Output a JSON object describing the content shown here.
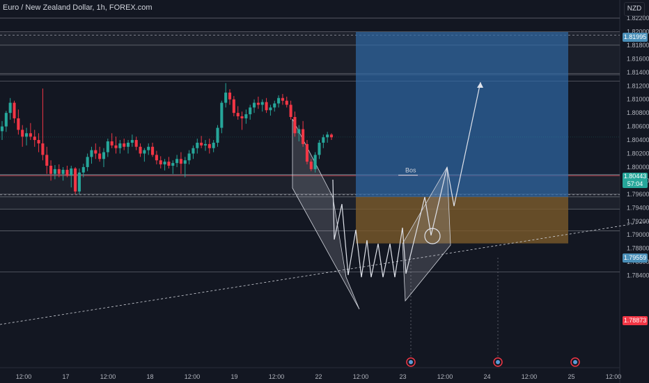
{
  "header": {
    "title": "Euro / New Zealand Dollar, 1h, FOREX.com",
    "currency": "NZD"
  },
  "colors": {
    "background": "#131722",
    "candle_up": "#26a69a",
    "candle_down": "#f23645",
    "target_zone": "#2f6aa6",
    "stop_zone": "#7a5a2a",
    "grid_text": "#b2b5be"
  },
  "chart_data": {
    "type": "candlestick",
    "symbol": "EURNZD",
    "timeframe": "1h",
    "y_axis": {
      "ticks": [
        "1.82200",
        "1.82000",
        "1.81800",
        "1.81600",
        "1.81400",
        "1.81200",
        "1.81000",
        "1.80800",
        "1.80600",
        "1.80400",
        "1.80200",
        "1.80000",
        "1.79800",
        "1.79600",
        "1.79400",
        "1.79200",
        "1.79000",
        "1.78800",
        "1.78600",
        "1.78400"
      ],
      "range": [
        1.7838,
        1.823
      ]
    },
    "x_axis": {
      "ticks": [
        "12:00",
        "17",
        "12:00",
        "18",
        "12:00",
        "19",
        "12:00",
        "22",
        "12:00",
        "23",
        "12:00",
        "24",
        "12:00",
        "25",
        "12:00"
      ]
    },
    "price_labels": {
      "target": "1.81995",
      "last": "1.80443",
      "countdown": "57:04",
      "entry": "1.79559",
      "stop": "1.78873"
    },
    "horizontal_levels": [
      1.822,
      1.82,
      1.818,
      1.8138,
      1.8136,
      1.8127,
      1.7989,
      1.7988,
      1.796,
      1.7956,
      1.7938,
      1.7906,
      1.7845
    ],
    "annotation": "Bos",
    "candles": [
      {
        "o": 1.8053,
        "h": 1.8068,
        "l": 1.804,
        "c": 1.806
      },
      {
        "o": 1.806,
        "h": 1.8083,
        "l": 1.8052,
        "c": 1.808
      },
      {
        "o": 1.808,
        "h": 1.8102,
        "l": 1.807,
        "c": 1.8095
      },
      {
        "o": 1.8095,
        "h": 1.8098,
        "l": 1.8065,
        "c": 1.8072
      },
      {
        "o": 1.8072,
        "h": 1.8085,
        "l": 1.8048,
        "c": 1.8055
      },
      {
        "o": 1.8055,
        "h": 1.8062,
        "l": 1.803,
        "c": 1.8045
      },
      {
        "o": 1.8045,
        "h": 1.8058,
        "l": 1.8032,
        "c": 1.805
      },
      {
        "o": 1.805,
        "h": 1.8065,
        "l": 1.804,
        "c": 1.8045
      },
      {
        "o": 1.8045,
        "h": 1.8055,
        "l": 1.803,
        "c": 1.804
      },
      {
        "o": 1.804,
        "h": 1.805,
        "l": 1.8022,
        "c": 1.8035
      },
      {
        "o": 1.8035,
        "h": 1.8116,
        "l": 1.801,
        "c": 1.8018
      },
      {
        "o": 1.8018,
        "h": 1.803,
        "l": 1.799,
        "c": 1.8002
      },
      {
        "o": 1.8002,
        "h": 1.801,
        "l": 1.798,
        "c": 1.799
      },
      {
        "o": 1.799,
        "h": 1.8003,
        "l": 1.7982,
        "c": 1.7997
      },
      {
        "o": 1.7997,
        "h": 1.8004,
        "l": 1.7985,
        "c": 1.799
      },
      {
        "o": 1.799,
        "h": 1.8,
        "l": 1.798,
        "c": 1.7996
      },
      {
        "o": 1.7996,
        "h": 1.8002,
        "l": 1.7985,
        "c": 1.7988
      },
      {
        "o": 1.7988,
        "h": 1.8002,
        "l": 1.797,
        "c": 1.7998
      },
      {
        "o": 1.7998,
        "h": 1.8,
        "l": 1.796,
        "c": 1.7964
      },
      {
        "o": 1.7964,
        "h": 1.7998,
        "l": 1.796,
        "c": 1.7992
      },
      {
        "o": 1.7992,
        "h": 1.8005,
        "l": 1.7985,
        "c": 1.8
      },
      {
        "o": 1.8,
        "h": 1.802,
        "l": 1.7994,
        "c": 1.8015
      },
      {
        "o": 1.8015,
        "h": 1.803,
        "l": 1.8005,
        "c": 1.8025
      },
      {
        "o": 1.8025,
        "h": 1.8035,
        "l": 1.8012,
        "c": 1.802
      },
      {
        "o": 1.802,
        "h": 1.803,
        "l": 1.8008,
        "c": 1.8012
      },
      {
        "o": 1.8012,
        "h": 1.8028,
        "l": 1.8,
        "c": 1.8022
      },
      {
        "o": 1.8022,
        "h": 1.8042,
        "l": 1.8015,
        "c": 1.8038
      },
      {
        "o": 1.8038,
        "h": 1.805,
        "l": 1.8028,
        "c": 1.8032
      },
      {
        "o": 1.8032,
        "h": 1.8045,
        "l": 1.802,
        "c": 1.8028
      },
      {
        "o": 1.8028,
        "h": 1.804,
        "l": 1.802,
        "c": 1.8035
      },
      {
        "o": 1.8035,
        "h": 1.8042,
        "l": 1.8025,
        "c": 1.803
      },
      {
        "o": 1.803,
        "h": 1.804,
        "l": 1.802,
        "c": 1.8036
      },
      {
        "o": 1.8036,
        "h": 1.8048,
        "l": 1.803,
        "c": 1.804
      },
      {
        "o": 1.804,
        "h": 1.8045,
        "l": 1.8025,
        "c": 1.803
      },
      {
        "o": 1.803,
        "h": 1.8035,
        "l": 1.8015,
        "c": 1.802
      },
      {
        "o": 1.802,
        "h": 1.8028,
        "l": 1.8008,
        "c": 1.8025
      },
      {
        "o": 1.8025,
        "h": 1.8035,
        "l": 1.8018,
        "c": 1.803
      },
      {
        "o": 1.803,
        "h": 1.8036,
        "l": 1.8015,
        "c": 1.8018
      },
      {
        "o": 1.8018,
        "h": 1.8024,
        "l": 1.8004,
        "c": 1.801
      },
      {
        "o": 1.801,
        "h": 1.8016,
        "l": 1.7998,
        "c": 1.8004
      },
      {
        "o": 1.8004,
        "h": 1.8012,
        "l": 1.7995,
        "c": 1.8008
      },
      {
        "o": 1.8008,
        "h": 1.8015,
        "l": 1.7998,
        "c": 1.8002
      },
      {
        "o": 1.8002,
        "h": 1.801,
        "l": 1.799,
        "c": 1.8006
      },
      {
        "o": 1.8006,
        "h": 1.8018,
        "l": 1.8,
        "c": 1.8012
      },
      {
        "o": 1.8012,
        "h": 1.8022,
        "l": 1.799,
        "c": 1.8005
      },
      {
        "o": 1.8005,
        "h": 1.8015,
        "l": 1.7985,
        "c": 1.801
      },
      {
        "o": 1.801,
        "h": 1.8025,
        "l": 1.8004,
        "c": 1.802
      },
      {
        "o": 1.802,
        "h": 1.8032,
        "l": 1.8012,
        "c": 1.8028
      },
      {
        "o": 1.8028,
        "h": 1.8042,
        "l": 1.802,
        "c": 1.8036
      },
      {
        "o": 1.8036,
        "h": 1.8046,
        "l": 1.8028,
        "c": 1.8032
      },
      {
        "o": 1.8032,
        "h": 1.804,
        "l": 1.8024,
        "c": 1.8034
      },
      {
        "o": 1.8034,
        "h": 1.8042,
        "l": 1.802,
        "c": 1.8028
      },
      {
        "o": 1.8028,
        "h": 1.804,
        "l": 1.8022,
        "c": 1.8036
      },
      {
        "o": 1.8036,
        "h": 1.8062,
        "l": 1.803,
        "c": 1.8058
      },
      {
        "o": 1.8058,
        "h": 1.8098,
        "l": 1.805,
        "c": 1.8095
      },
      {
        "o": 1.8095,
        "h": 1.8124,
        "l": 1.8088,
        "c": 1.811
      },
      {
        "o": 1.811,
        "h": 1.8115,
        "l": 1.8092,
        "c": 1.81
      },
      {
        "o": 1.81,
        "h": 1.8105,
        "l": 1.8075,
        "c": 1.808
      },
      {
        "o": 1.808,
        "h": 1.809,
        "l": 1.807,
        "c": 1.8075
      },
      {
        "o": 1.8075,
        "h": 1.8082,
        "l": 1.8055,
        "c": 1.8072
      },
      {
        "o": 1.8072,
        "h": 1.8085,
        "l": 1.8064,
        "c": 1.8078
      },
      {
        "o": 1.8078,
        "h": 1.8092,
        "l": 1.807,
        "c": 1.8088
      },
      {
        "o": 1.8088,
        "h": 1.81,
        "l": 1.808,
        "c": 1.8095
      },
      {
        "o": 1.8095,
        "h": 1.8104,
        "l": 1.8086,
        "c": 1.8092
      },
      {
        "o": 1.8092,
        "h": 1.81,
        "l": 1.8082,
        "c": 1.8096
      },
      {
        "o": 1.8096,
        "h": 1.8102,
        "l": 1.808,
        "c": 1.8084
      },
      {
        "o": 1.8084,
        "h": 1.8092,
        "l": 1.8076,
        "c": 1.8088
      },
      {
        "o": 1.8088,
        "h": 1.8098,
        "l": 1.8082,
        "c": 1.8094
      },
      {
        "o": 1.8094,
        "h": 1.8106,
        "l": 1.8088,
        "c": 1.8102
      },
      {
        "o": 1.8102,
        "h": 1.8108,
        "l": 1.8092,
        "c": 1.8098
      },
      {
        "o": 1.8098,
        "h": 1.8104,
        "l": 1.8088,
        "c": 1.8092
      },
      {
        "o": 1.8092,
        "h": 1.8098,
        "l": 1.807,
        "c": 1.8074
      },
      {
        "o": 1.8074,
        "h": 1.8082,
        "l": 1.8045,
        "c": 1.805
      },
      {
        "o": 1.805,
        "h": 1.8062,
        "l": 1.8038,
        "c": 1.8056
      },
      {
        "o": 1.8056,
        "h": 1.8068,
        "l": 1.803,
        "c": 1.8034
      },
      {
        "o": 1.8034,
        "h": 1.804,
        "l": 1.8004,
        "c": 1.8008
      },
      {
        "o": 1.8008,
        "h": 1.8012,
        "l": 1.7994,
        "c": 1.7997
      },
      {
        "o": 1.7997,
        "h": 1.8022,
        "l": 1.7992,
        "c": 1.8018
      },
      {
        "o": 1.8018,
        "h": 1.804,
        "l": 1.8012,
        "c": 1.8036
      },
      {
        "o": 1.8036,
        "h": 1.8048,
        "l": 1.8028,
        "c": 1.8044
      },
      {
        "o": 1.8044,
        "h": 1.8052,
        "l": 1.8036,
        "c": 1.8048
      },
      {
        "o": 1.8048,
        "h": 1.805,
        "l": 1.804,
        "c": 1.8044
      }
    ]
  }
}
